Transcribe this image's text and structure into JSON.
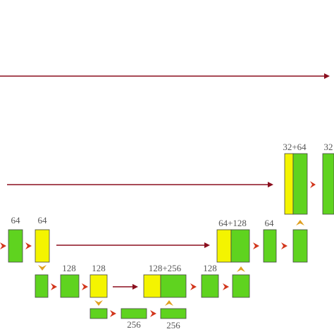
{
  "labels": [
    "32+64",
    "32",
    "64",
    "64",
    "64+128",
    "64",
    "128",
    "128",
    "128+256",
    "128",
    "256",
    "256"
  ]
}
